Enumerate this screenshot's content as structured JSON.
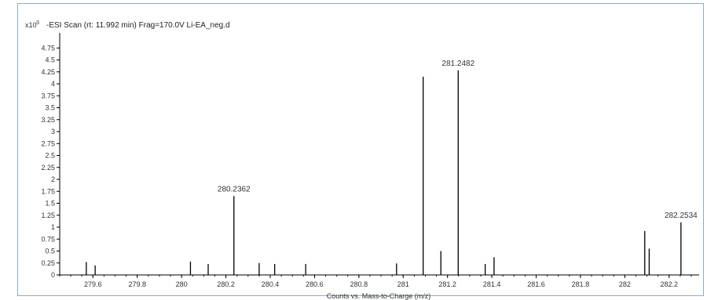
{
  "chart_data": {
    "type": "bar",
    "title": "-ESI Scan (rt: 11.992 min) Frag=170.0V Li-EA_neg.d",
    "y_multiplier_label": "x10",
    "y_multiplier_exponent": "3",
    "xlabel": "Counts vs. Mass-to-Charge (m/z)",
    "xlim": [
      279.45,
      282.3
    ],
    "ylim": [
      0,
      5
    ],
    "x_ticks": [
      279.6,
      279.8,
      280,
      280.2,
      280.4,
      280.6,
      280.8,
      281,
      281.2,
      281.4,
      281.6,
      281.8,
      282,
      282.2
    ],
    "x_tick_labels": [
      "279.6",
      "279.8",
      "280",
      "280.2",
      "280.4",
      "280.6",
      "280.8",
      "281",
      "281.2",
      "281.4",
      "281.6",
      "281.8",
      "282",
      "282.2"
    ],
    "y_ticks": [
      0,
      0.25,
      0.5,
      0.75,
      1,
      1.25,
      1.5,
      1.75,
      2,
      2.25,
      2.5,
      2.75,
      3,
      3.25,
      3.5,
      3.75,
      4,
      4.25,
      4.5,
      4.75
    ],
    "y_tick_labels": [
      "0",
      "0.25",
      "0.5",
      "0.75",
      "1",
      "1.25",
      "1.5",
      "1.75",
      "2",
      "2.25",
      "2.5",
      "2.75",
      "3",
      "3.25",
      "3.5",
      "3.75",
      "4",
      "4.25",
      "4.5",
      "4.75"
    ],
    "peaks": [
      {
        "mz": 279.57,
        "intensity": 0.27
      },
      {
        "mz": 279.61,
        "intensity": 0.2
      },
      {
        "mz": 280.04,
        "intensity": 0.28
      },
      {
        "mz": 280.12,
        "intensity": 0.23
      },
      {
        "mz": 280.2362,
        "intensity": 1.65,
        "label": "280.2362"
      },
      {
        "mz": 280.35,
        "intensity": 0.25
      },
      {
        "mz": 280.42,
        "intensity": 0.23
      },
      {
        "mz": 280.56,
        "intensity": 0.23
      },
      {
        "mz": 280.97,
        "intensity": 0.24
      },
      {
        "mz": 281.09,
        "intensity": 4.15
      },
      {
        "mz": 281.17,
        "intensity": 0.5
      },
      {
        "mz": 281.2482,
        "intensity": 4.28,
        "label": "281.2482"
      },
      {
        "mz": 281.37,
        "intensity": 0.23
      },
      {
        "mz": 281.41,
        "intensity": 0.37
      },
      {
        "mz": 282.09,
        "intensity": 0.92
      },
      {
        "mz": 282.11,
        "intensity": 0.55
      },
      {
        "mz": 282.2534,
        "intensity": 1.1,
        "label": "282.2534"
      }
    ],
    "grid": false,
    "colors": {
      "peak": "#000000",
      "axis": "#000000",
      "border": "#8fa9c9"
    }
  }
}
